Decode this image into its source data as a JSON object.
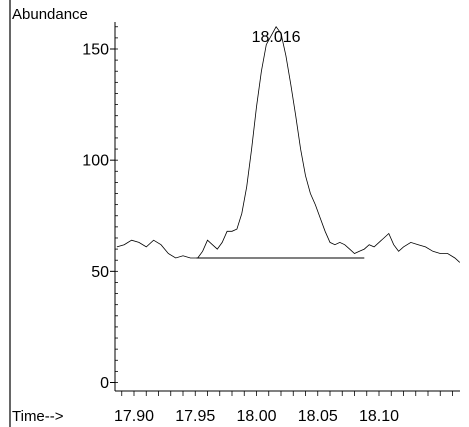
{
  "chart_data": {
    "type": "line",
    "ylabel": "Abundance",
    "xlabel": "Time-->",
    "xlim": [
      17.886,
      18.17
    ],
    "ylim": [
      0,
      160
    ],
    "xticks": [
      17.9,
      17.95,
      18.0,
      18.05,
      18.1
    ],
    "xtick_labels": [
      "17.90",
      "17.95",
      "18.00",
      "18.05",
      "18.10"
    ],
    "yticks": [
      0,
      50,
      100,
      150
    ],
    "ytick_labels": [
      "0",
      "50",
      "100",
      "150"
    ],
    "peak_label": {
      "x": 18.016,
      "y": 158,
      "text": "18.016"
    },
    "baseline": {
      "x1": 17.951,
      "y1": 56,
      "x2": 18.088,
      "y2": 56
    },
    "series": [
      {
        "x": [
          17.886,
          17.892,
          17.898,
          17.904,
          17.91,
          17.916,
          17.922,
          17.928,
          17.934,
          17.94,
          17.946,
          17.952,
          17.956,
          17.96,
          17.964,
          17.968,
          17.972,
          17.976,
          17.98,
          17.984,
          17.988,
          17.992,
          17.996,
          18.0,
          18.004,
          18.008,
          18.012,
          18.016,
          18.02,
          18.024,
          18.028,
          18.032,
          18.036,
          18.04,
          18.044,
          18.048,
          18.052,
          18.056,
          18.06,
          18.064,
          18.068,
          18.072,
          18.076,
          18.08,
          18.084,
          18.088,
          18.092,
          18.096,
          18.1,
          18.104,
          18.108,
          18.112,
          18.116,
          18.12,
          18.126,
          18.132,
          18.138,
          18.144,
          18.15,
          18.156,
          18.162,
          18.166
        ],
        "y": [
          61,
          62,
          64,
          63,
          61,
          64,
          62,
          58,
          56,
          57,
          56,
          56,
          59,
          64,
          62,
          60,
          63,
          68,
          68,
          69,
          76,
          88,
          105,
          124,
          140,
          152,
          156,
          160,
          157,
          147,
          134,
          120,
          105,
          93,
          85,
          80,
          74,
          68,
          63,
          62,
          63,
          62,
          60,
          58,
          59,
          60,
          62,
          61,
          63,
          65,
          67,
          62,
          59,
          61,
          63,
          62,
          61,
          59,
          58,
          58,
          56,
          54
        ]
      }
    ]
  }
}
